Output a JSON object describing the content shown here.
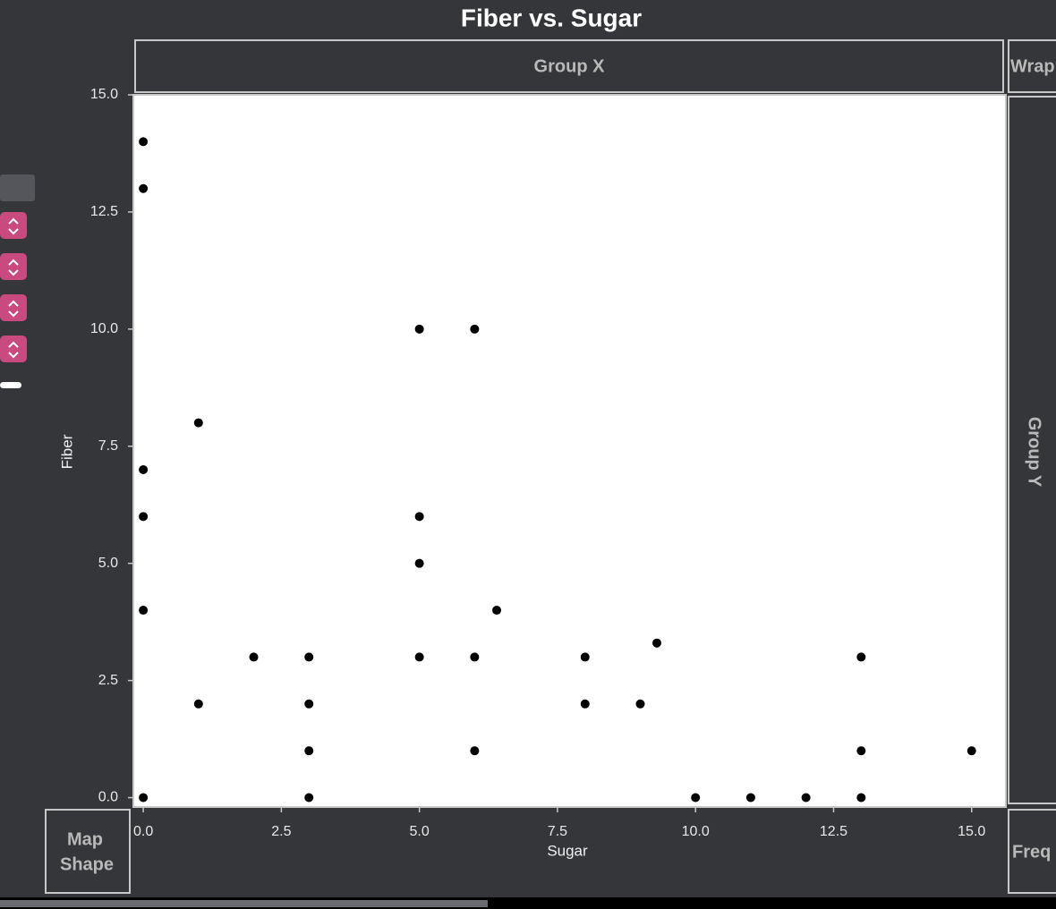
{
  "chart_data": {
    "type": "scatter",
    "title": "Fiber vs. Sugar",
    "x_label": "Sugar",
    "y_label": "Fiber",
    "color": "#000000",
    "x": [
      0,
      0,
      0,
      0,
      0,
      0,
      1,
      1,
      2,
      3,
      3,
      3,
      3,
      5,
      5,
      5,
      5,
      6,
      6,
      6,
      6.4,
      8,
      8,
      9,
      9.3,
      10,
      11,
      12,
      13,
      13,
      13,
      15
    ],
    "values": [
      14,
      13,
      7,
      6,
      4,
      0,
      8,
      2,
      3,
      3,
      2,
      1,
      0,
      10,
      6,
      5,
      3,
      10,
      3,
      1,
      4,
      3,
      2,
      2,
      3.3,
      0,
      0,
      0,
      3,
      1,
      0,
      1
    ],
    "xlim": [
      -0.18,
      15.62
    ],
    "ylim": [
      -0.2,
      15.0
    ],
    "xticks": [
      {
        "value": 0,
        "label": "0.0"
      },
      2.5,
      {
        "value": 5,
        "label": "5.0"
      },
      7.5,
      {
        "value": 10,
        "label": "10.0"
      },
      12.5,
      {
        "value": 15,
        "label": "15.0"
      }
    ],
    "yticks": [
      {
        "value": 0,
        "label": "0.0"
      },
      2.5,
      {
        "value": 5,
        "label": "5.0"
      },
      7.5,
      {
        "value": 10,
        "label": "10.0"
      },
      12.5,
      {
        "value": 15,
        "label": "15.0"
      }
    ]
  },
  "drop_zones": {
    "group_x": "Group X",
    "wrap": "Wrap",
    "group_y": "Group Y",
    "map_shape": [
      "Map",
      "Shape"
    ],
    "freq": "Freq"
  }
}
